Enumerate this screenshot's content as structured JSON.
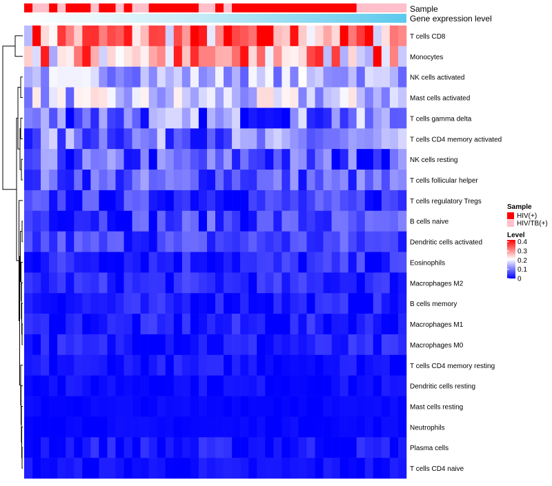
{
  "chart_data": {
    "type": "heatmap",
    "title": "",
    "annotation_labels": {
      "sample": "Sample",
      "expression": "Gene expression level"
    },
    "rows": [
      "T cells CD8",
      "Monocytes",
      "NK cells activated",
      "Mast cells activated",
      "T cells gamma delta",
      "T cells CD4 memory activated",
      "NK cells resting",
      "T cells follicular helper",
      "T cells regulatory  Tregs",
      "B cells naive",
      "Dendritic cells activated",
      "Eosinophils",
      "Macrophages M2",
      "B cells memory",
      "Macrophages M1",
      "Macrophages M0",
      "T cells CD4 memory resting",
      "Dendritic cells resting",
      "Mast cells resting",
      "Neutrophils",
      "Plasma cells",
      "T cells CD4 naive"
    ],
    "n_samples": 46,
    "sample_groups": [
      1,
      0,
      0,
      1,
      0,
      1,
      1,
      1,
      0,
      1,
      1,
      0,
      1,
      0,
      0,
      1,
      1,
      1,
      1,
      1,
      1,
      0,
      0,
      1,
      0,
      1,
      1,
      1,
      1,
      1,
      1,
      1,
      1,
      1,
      1,
      1,
      1,
      1,
      1,
      1,
      0,
      0,
      0,
      0,
      0,
      0
    ],
    "legend": {
      "sample_title": "Sample",
      "sample_items": [
        {
          "label": "HIV(+)",
          "color": "#ff0000"
        },
        {
          "label": "HIV/TB(+)",
          "color": "#ffc0cb"
        }
      ],
      "level_title": "Level",
      "level_ticks": [
        "0.4",
        "0.3",
        "0.2",
        "0.1",
        "0"
      ],
      "level_values": [
        0.4,
        0.3,
        0.2,
        0.1,
        0
      ]
    },
    "color_scale": {
      "min": 0,
      "mid": 0.2,
      "max": 0.4,
      "low": "#0000ff",
      "midcolor": "#ffffff",
      "high": "#ff0000"
    },
    "row_means": [
      0.29,
      0.26,
      0.14,
      0.15,
      0.09,
      0.09,
      0.06,
      0.07,
      0.04,
      0.05,
      0.05,
      0.03,
      0.03,
      0.02,
      0.02,
      0.02,
      0.015,
      0.01,
      0.005,
      0.005,
      0.015,
      0.01
    ],
    "row_sds": [
      0.09,
      0.09,
      0.04,
      0.05,
      0.06,
      0.05,
      0.05,
      0.04,
      0.03,
      0.035,
      0.03,
      0.025,
      0.02,
      0.02,
      0.02,
      0.02,
      0.015,
      0.01,
      0.005,
      0.005,
      0.02,
      0.012
    ],
    "expression_gradient": [
      "#ffffff",
      "#c6ecf7",
      "#5bc9ed"
    ]
  }
}
